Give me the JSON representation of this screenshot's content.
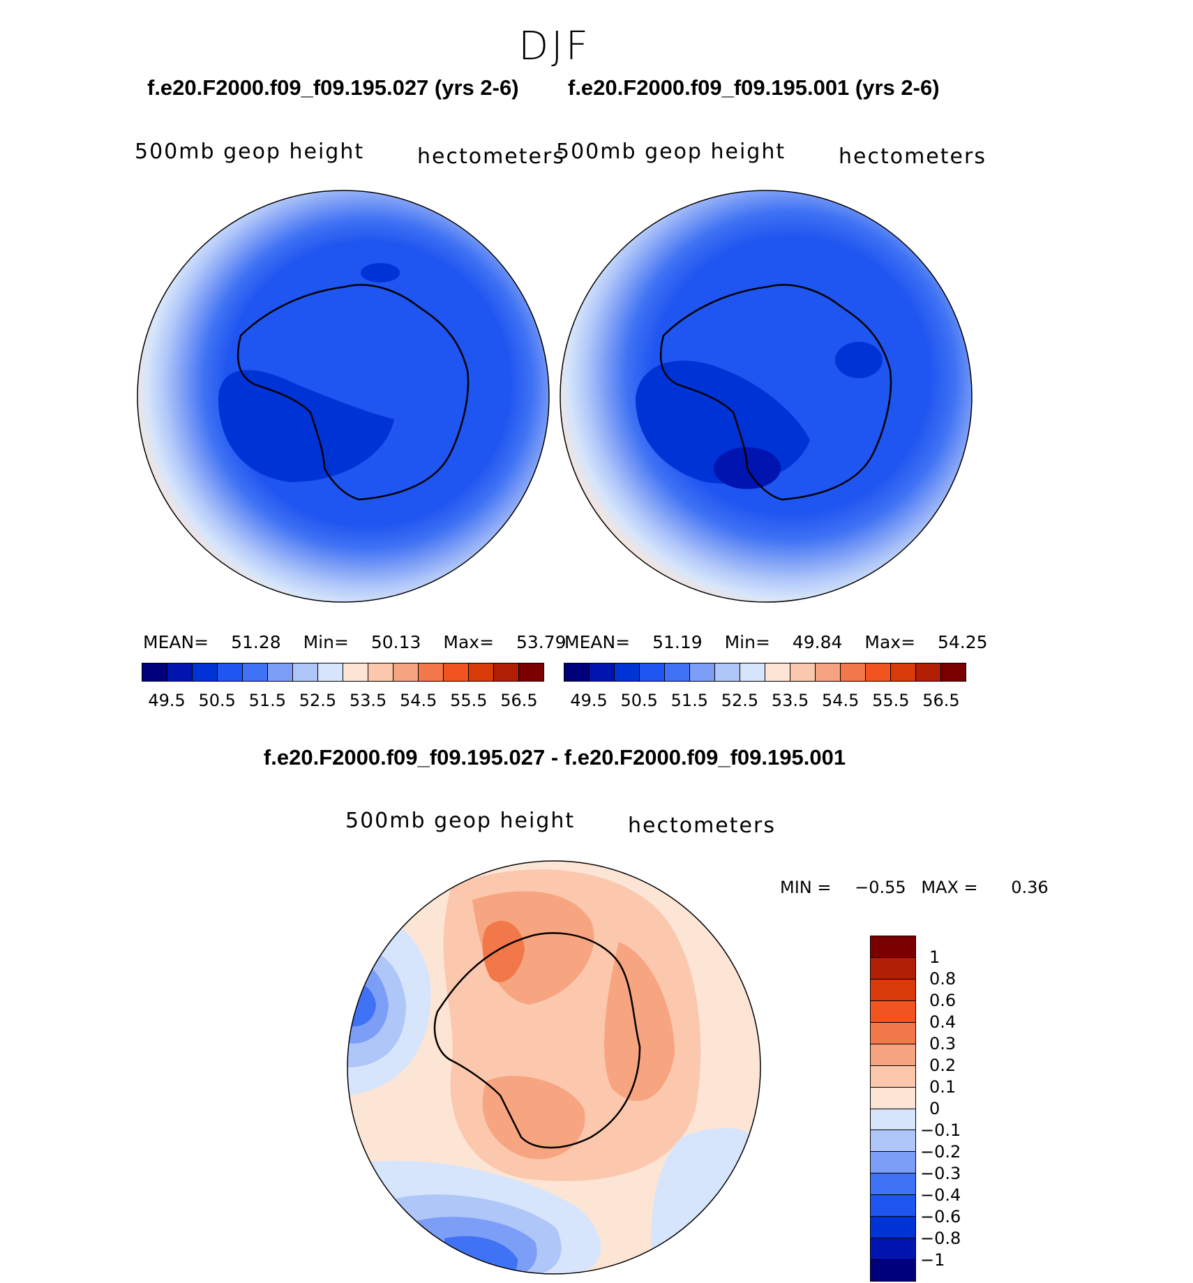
{
  "season": "DJF",
  "top_left": {
    "case_title": "f.e20.F2000.f09_f09.195.027 (yrs 2-6)",
    "variable": "500mb geop height",
    "units": "hectometers",
    "stats": {
      "mean_label": "MEAN=",
      "mean": "51.28",
      "min_label": "Min=",
      "min": "50.13",
      "max_label": "Max=",
      "max": "53.79"
    }
  },
  "top_right": {
    "case_title": "f.e20.F2000.f09_f09.195.001 (yrs 2-6)",
    "variable": "500mb geop height",
    "units": "hectometers",
    "stats": {
      "mean_label": "MEAN=",
      "mean": "51.19",
      "min_label": "Min=",
      "min": "49.84",
      "max_label": "Max=",
      "max": "54.25"
    }
  },
  "field_colorbar": {
    "colors": [
      "#00007a",
      "#0015b0",
      "#0033d6",
      "#1f55f0",
      "#3f72f4",
      "#7d9ef6",
      "#afc6f9",
      "#d6e5fb",
      "#fde5d6",
      "#fbc8ad",
      "#f7a480",
      "#f2784a",
      "#f2541f",
      "#d93a0a",
      "#b01e04",
      "#7a0000"
    ],
    "tick_labels": [
      "49.5",
      "50.5",
      "51.5",
      "52.5",
      "53.5",
      "54.5",
      "55.5",
      "56.5"
    ]
  },
  "difference": {
    "title": "f.e20.F2000.f09_f09.195.027 - f.e20.F2000.f09_f09.195.001",
    "variable": "500mb geop height",
    "units": "hectometers",
    "minmax": {
      "min_label": "MIN =",
      "min": "−0.55",
      "max_label": "MAX =",
      "max": "0.36"
    },
    "colorbar_colors": [
      "#7a0000",
      "#b01e04",
      "#d93a0a",
      "#f2541f",
      "#f2784a",
      "#f7a480",
      "#fbc8ad",
      "#fde5d6",
      "#d6e5fb",
      "#afc6f9",
      "#7d9ef6",
      "#3f72f4",
      "#1f55f0",
      "#0033d6",
      "#0015b0",
      "#00007a"
    ],
    "tick_labels": [
      "1",
      "0.8",
      "0.6",
      "0.4",
      "0.3",
      "0.2",
      "0.1",
      "0",
      "−0.1",
      "−0.2",
      "−0.3",
      "−0.4",
      "−0.6",
      "−0.8",
      "−1"
    ]
  }
}
